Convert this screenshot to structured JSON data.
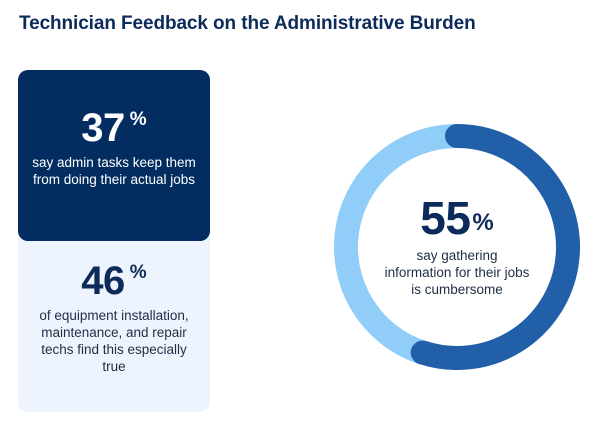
{
  "title": "Technician Feedback on the Administrative Burden",
  "colors": {
    "title": "#0c2a5a",
    "dark_card": "#032d60",
    "light_card": "#eef4fd",
    "donut_highlight": "#215fa8",
    "donut_remainder": "#90cdf8"
  },
  "stats": {
    "admin": {
      "value": "37",
      "unit": "%",
      "description": "say admin tasks keep them from doing their actual jobs"
    },
    "equipment": {
      "value": "46",
      "unit": "%",
      "description": "of equipment installation, maintenance, and repair techs find this especially true"
    }
  },
  "chart_data": {
    "type": "pie",
    "variant": "donut",
    "values": [
      55,
      45
    ],
    "center_value": "55",
    "center_unit": "%",
    "center_description": "say gathering information for their jobs is cumbersome"
  }
}
